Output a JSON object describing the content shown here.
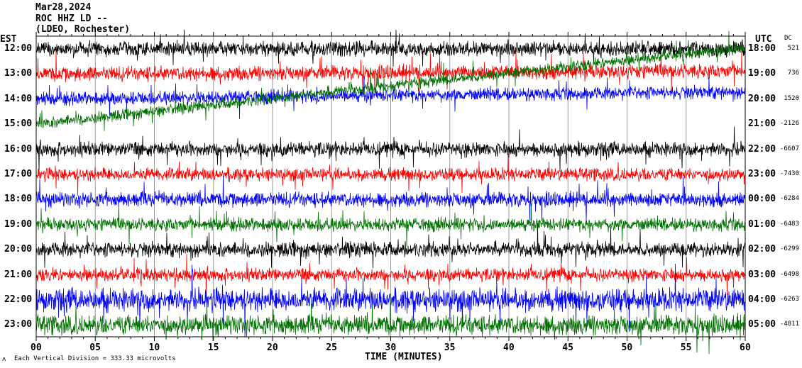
{
  "header": {
    "date": "Mar28,2024",
    "station": "ROC HHZ LD --",
    "network": "(LDEO, Rochester)"
  },
  "footer": {
    "scale_note": "Each Vertical Division = 333.33 microvolts",
    "logo_mark": "ʌ"
  },
  "chart_data": {
    "type": "line",
    "title": "",
    "xlabel": "TIME (MINUTES)",
    "xlim": [
      0,
      60
    ],
    "x_ticks": [
      "00",
      "05",
      "10",
      "15",
      "20",
      "25",
      "30",
      "35",
      "40",
      "45",
      "50",
      "55",
      "60"
    ],
    "left_axis_title": "EST",
    "right_axis_title": "UTC",
    "dc_title": "DC",
    "grid": true,
    "series_colors": [
      "#000000",
      "#ff0000",
      "#0000ff",
      "#007000"
    ],
    "rows": [
      {
        "est": "12:00",
        "utc": "18:00",
        "dc": "521"
      },
      {
        "est": "13:00",
        "utc": "19:00",
        "dc": "736"
      },
      {
        "est": "14:00",
        "utc": "20:00",
        "dc": "1520"
      },
      {
        "est": "15:00",
        "utc": "21:00",
        "dc": "-2126"
      },
      {
        "est": "16:00",
        "utc": "22:00",
        "dc": "-6607"
      },
      {
        "est": "17:00",
        "utc": "23:00",
        "dc": "-7430"
      },
      {
        "est": "18:00",
        "utc": "00:00",
        "dc": "-6284"
      },
      {
        "est": "19:00",
        "utc": "01:00",
        "dc": "-6483"
      },
      {
        "est": "20:00",
        "utc": "02:00",
        "dc": "-6299"
      },
      {
        "est": "21:00",
        "utc": "03:00",
        "dc": "-6498"
      },
      {
        "est": "22:00",
        "utc": "04:00",
        "dc": "-6263"
      },
      {
        "est": "23:00",
        "utc": "05:00",
        "dc": "-4811"
      }
    ]
  }
}
